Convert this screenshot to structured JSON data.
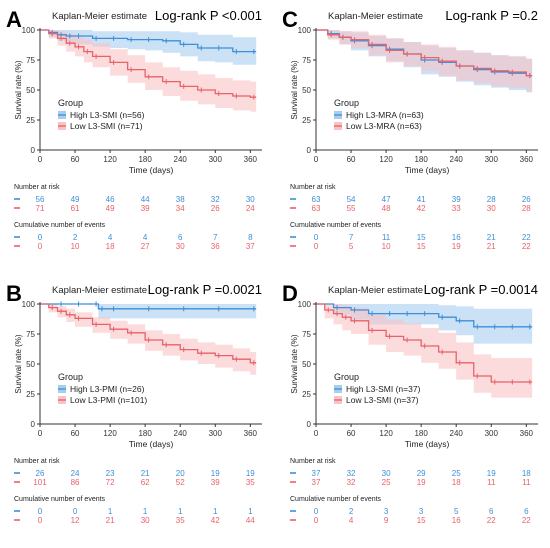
{
  "colors": {
    "high": "#3d8fd8",
    "low": "#e8626a",
    "high_band": "#a8cdef",
    "low_band": "#f8c3c4"
  },
  "chart_data": [
    {
      "panel": "A",
      "type": "line",
      "title": "Kaplan-Meier estimate",
      "pvalue_label": "Log-rank P <0.001",
      "xlabel": "Time (days)",
      "ylabel": "Survival rate (%)",
      "xlim": [
        0,
        380
      ],
      "ylim": [
        0,
        100
      ],
      "xticks": [
        0,
        60,
        120,
        180,
        240,
        300,
        360
      ],
      "yticks": [
        0,
        25,
        50,
        75,
        100
      ],
      "legend_title": "Group",
      "legend_position": "bottom-left",
      "risk_header": "Number at risk",
      "events_header": "Cumulative number of events",
      "series": [
        {
          "name": "High L3-SMI (n=56)",
          "x": [
            0,
            15,
            30,
            45,
            60,
            90,
            120,
            150,
            180,
            210,
            240,
            270,
            300,
            330,
            360,
            370
          ],
          "values": [
            100,
            98,
            96,
            95,
            95,
            93,
            93,
            92,
            92,
            91,
            88,
            85,
            85,
            82,
            82,
            82
          ],
          "lower": [
            100,
            94,
            91,
            89,
            88,
            86,
            85,
            84,
            83,
            81,
            78,
            74,
            73,
            71,
            71,
            71
          ],
          "upper": [
            100,
            100,
            100,
            100,
            100,
            99,
            99,
            99,
            99,
            99,
            98,
            96,
            96,
            94,
            94,
            94
          ]
        },
        {
          "name": "Low L3-SMI (n=71)",
          "x": [
            0,
            15,
            30,
            45,
            60,
            75,
            90,
            120,
            150,
            180,
            210,
            240,
            270,
            300,
            330,
            360,
            370
          ],
          "values": [
            100,
            97,
            93,
            89,
            86,
            82,
            78,
            73,
            67,
            61,
            57,
            53,
            50,
            47,
            45,
            44,
            44
          ],
          "lower": [
            100,
            93,
            87,
            82,
            78,
            73,
            69,
            62,
            56,
            50,
            45,
            41,
            38,
            35,
            33,
            32,
            32
          ],
          "upper": [
            100,
            100,
            99,
            97,
            95,
            92,
            89,
            84,
            79,
            73,
            69,
            66,
            63,
            60,
            58,
            57,
            57
          ]
        }
      ],
      "risk_ticks": [
        "0",
        "60",
        "120",
        "180",
        "240",
        "300",
        "360"
      ],
      "risk": [
        [
          "56",
          "49",
          "46",
          "44",
          "38",
          "32",
          "30"
        ],
        [
          "71",
          "61",
          "49",
          "39",
          "34",
          "26",
          "24"
        ]
      ],
      "events": [
        [
          "0",
          "2",
          "4",
          "4",
          "6",
          "7",
          "8"
        ],
        [
          "0",
          "10",
          "18",
          "27",
          "30",
          "36",
          "37"
        ]
      ]
    },
    {
      "panel": "C",
      "type": "line",
      "title": "Kaplan-Meier estimate",
      "pvalue_label": "Log-rank P =0.2",
      "xlabel": "Time (days)",
      "ylabel": "Survival rate (%)",
      "xlim": [
        0,
        380
      ],
      "ylim": [
        0,
        100
      ],
      "xticks": [
        0,
        60,
        120,
        180,
        240,
        300,
        360
      ],
      "yticks": [
        0,
        25,
        50,
        75,
        100
      ],
      "legend_title": "Group",
      "legend_position": "bottom-left",
      "risk_header": "Number at risk",
      "events_header": "Cumulative number of events",
      "series": [
        {
          "name": "High L3-MRA (n=63)",
          "x": [
            0,
            20,
            40,
            60,
            90,
            120,
            150,
            180,
            210,
            240,
            270,
            300,
            330,
            360,
            370
          ],
          "values": [
            100,
            97,
            94,
            91,
            87,
            84,
            80,
            75,
            73,
            70,
            67,
            65,
            64,
            62,
            62
          ],
          "lower": [
            100,
            93,
            88,
            83,
            78,
            74,
            69,
            63,
            61,
            57,
            54,
            52,
            50,
            48,
            48
          ],
          "upper": [
            100,
            100,
            99,
            98,
            95,
            93,
            90,
            87,
            85,
            83,
            81,
            79,
            78,
            76,
            76
          ]
        },
        {
          "name": "Low L3-MRA (n=63)",
          "x": [
            0,
            20,
            40,
            60,
            90,
            120,
            150,
            180,
            210,
            240,
            270,
            300,
            330,
            360,
            370
          ],
          "values": [
            100,
            96,
            94,
            92,
            88,
            83,
            80,
            77,
            74,
            70,
            68,
            66,
            65,
            62,
            62
          ],
          "lower": [
            100,
            92,
            88,
            85,
            79,
            73,
            70,
            66,
            62,
            58,
            56,
            53,
            52,
            49,
            49
          ],
          "upper": [
            100,
            100,
            99,
            99,
            96,
            93,
            90,
            88,
            86,
            83,
            81,
            79,
            78,
            76,
            76
          ]
        }
      ],
      "risk_ticks": [
        "0",
        "60",
        "120",
        "180",
        "240",
        "300",
        "360"
      ],
      "risk": [
        [
          "63",
          "54",
          "47",
          "41",
          "39",
          "28",
          "26"
        ],
        [
          "63",
          "55",
          "48",
          "42",
          "33",
          "30",
          "28"
        ]
      ],
      "events": [
        [
          "0",
          "7",
          "11",
          "15",
          "16",
          "21",
          "22"
        ],
        [
          "0",
          "5",
          "10",
          "15",
          "19",
          "21",
          "22"
        ]
      ]
    },
    {
      "panel": "B",
      "type": "line",
      "title": "Kaplan-Meier estimate",
      "pvalue_label": "Log-rank P =0.0021",
      "xlabel": "Time (days)",
      "ylabel": "Survival rate (%)",
      "xlim": [
        0,
        380
      ],
      "ylim": [
        0,
        100
      ],
      "xticks": [
        0,
        60,
        120,
        180,
        240,
        300,
        360
      ],
      "yticks": [
        0,
        25,
        50,
        75,
        100
      ],
      "legend_title": "Group",
      "legend_position": "bottom-left",
      "risk_header": "Number at risk",
      "events_header": "Cumulative number of events",
      "series": [
        {
          "name": "High L3-PMI (n=26)",
          "x": [
            0,
            30,
            60,
            90,
            100,
            120,
            180,
            240,
            300,
            360,
            370
          ],
          "values": [
            100,
            100,
            100,
            100,
            96,
            96,
            96,
            96,
            96,
            96,
            96
          ],
          "lower": [
            100,
            100,
            100,
            100,
            88,
            88,
            88,
            88,
            88,
            88,
            88
          ],
          "upper": [
            100,
            100,
            100,
            100,
            100,
            100,
            100,
            100,
            100,
            100,
            100
          ]
        },
        {
          "name": "Low L3-PMI (n=101)",
          "x": [
            0,
            15,
            30,
            45,
            60,
            90,
            120,
            150,
            180,
            210,
            240,
            270,
            300,
            330,
            360,
            370
          ],
          "values": [
            100,
            97,
            94,
            91,
            88,
            83,
            79,
            76,
            70,
            66,
            62,
            59,
            57,
            54,
            51,
            51
          ],
          "lower": [
            100,
            93,
            89,
            85,
            81,
            76,
            71,
            67,
            61,
            57,
            53,
            50,
            47,
            44,
            41,
            41
          ],
          "upper": [
            100,
            100,
            98,
            96,
            93,
            89,
            86,
            83,
            78,
            75,
            71,
            68,
            66,
            63,
            60,
            60
          ]
        }
      ],
      "risk_ticks": [
        "0",
        "60",
        "120",
        "180",
        "240",
        "300",
        "360"
      ],
      "risk": [
        [
          "26",
          "24",
          "23",
          "21",
          "20",
          "19",
          "19"
        ],
        [
          "101",
          "86",
          "72",
          "62",
          "52",
          "39",
          "35"
        ]
      ],
      "events": [
        [
          "0",
          "0",
          "1",
          "1",
          "1",
          "1",
          "1"
        ],
        [
          "0",
          "12",
          "21",
          "30",
          "35",
          "42",
          "44"
        ]
      ]
    },
    {
      "panel": "D",
      "type": "line",
      "title": "Kaplan-Meier estimate",
      "pvalue_label": "Log-rank P =0.0014",
      "xlabel": "Time (days)",
      "ylabel": "Survival rate (%)",
      "xlim": [
        0,
        380
      ],
      "ylim": [
        0,
        100
      ],
      "xticks": [
        0,
        60,
        120,
        180,
        240,
        300,
        360
      ],
      "yticks": [
        0,
        25,
        50,
        75,
        100
      ],
      "legend_title": "Group",
      "legend_position": "bottom-left",
      "risk_header": "Number at risk",
      "events_header": "Cumulative number of events",
      "series": [
        {
          "name": "High L3-SMI (n=37)",
          "x": [
            0,
            30,
            60,
            90,
            120,
            150,
            180,
            210,
            240,
            270,
            300,
            330,
            360,
            370
          ],
          "values": [
            100,
            97,
            95,
            92,
            92,
            92,
            92,
            89,
            86,
            81,
            81,
            81,
            81,
            81
          ],
          "lower": [
            100,
            91,
            87,
            83,
            83,
            83,
            83,
            78,
            74,
            67,
            67,
            67,
            67,
            67
          ],
          "upper": [
            100,
            100,
            100,
            100,
            100,
            100,
            100,
            99,
            98,
            96,
            96,
            96,
            96,
            96
          ]
        },
        {
          "name": "Low L3-SMI (n=37)",
          "x": [
            0,
            15,
            30,
            45,
            60,
            90,
            120,
            150,
            180,
            210,
            240,
            270,
            300,
            330,
            360,
            370
          ],
          "values": [
            100,
            95,
            92,
            89,
            86,
            78,
            73,
            70,
            65,
            60,
            51,
            40,
            35,
            35,
            35,
            35
          ],
          "lower": [
            100,
            88,
            83,
            78,
            75,
            66,
            60,
            57,
            51,
            46,
            37,
            26,
            22,
            22,
            22,
            22
          ],
          "upper": [
            100,
            100,
            100,
            99,
            97,
            91,
            87,
            84,
            80,
            76,
            68,
            58,
            55,
            55,
            55,
            55
          ]
        }
      ],
      "risk_ticks": [
        "0",
        "60",
        "120",
        "180",
        "240",
        "300",
        "360"
      ],
      "risk": [
        [
          "37",
          "32",
          "30",
          "29",
          "25",
          "19",
          "18"
        ],
        [
          "37",
          "32",
          "25",
          "19",
          "18",
          "11",
          "11"
        ]
      ],
      "events": [
        [
          "0",
          "2",
          "3",
          "3",
          "5",
          "6",
          "6"
        ],
        [
          "0",
          "4",
          "9",
          "15",
          "16",
          "22",
          "22"
        ]
      ]
    }
  ]
}
